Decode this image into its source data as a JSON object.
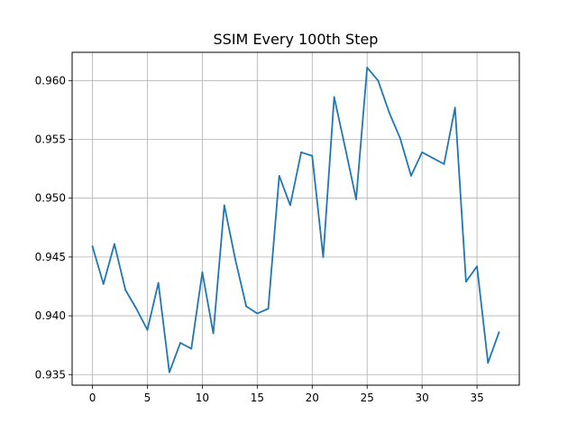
{
  "chart_data": {
    "type": "line",
    "title": "SSIM Every 100th Step",
    "xlabel": "",
    "ylabel": "",
    "xlim": [
      -1.85,
      38.85
    ],
    "ylim": [
      0.9341,
      0.9624
    ],
    "xticks": [
      0,
      5,
      10,
      15,
      20,
      25,
      30,
      35
    ],
    "xtick_labels": [
      "0",
      "5",
      "10",
      "15",
      "20",
      "25",
      "30",
      "35"
    ],
    "yticks": [
      0.935,
      0.94,
      0.945,
      0.95,
      0.955,
      0.96
    ],
    "ytick_labels": [
      "0.935",
      "0.940",
      "0.945",
      "0.950",
      "0.955",
      "0.960"
    ],
    "grid": true,
    "series": [
      {
        "color": "#1f77b4",
        "x": [
          0,
          1,
          2,
          3,
          4,
          5,
          6,
          7,
          8,
          9,
          10,
          11,
          12,
          13,
          14,
          15,
          16,
          17,
          18,
          19,
          20,
          21,
          22,
          23,
          24,
          25,
          26,
          27,
          28,
          29,
          30,
          31,
          32,
          33,
          34,
          35,
          36,
          37
        ],
        "y": [
          0.9459,
          0.9427,
          0.9461,
          0.9422,
          0.9406,
          0.9388,
          0.9428,
          0.9352,
          0.9377,
          0.9372,
          0.9437,
          0.9385,
          0.9494,
          0.9448,
          0.9408,
          0.9402,
          0.9406,
          0.9519,
          0.9494,
          0.9539,
          0.9536,
          0.945,
          0.9586,
          0.9543,
          0.9499,
          0.9611,
          0.96,
          0.9573,
          0.9551,
          0.9519,
          0.9539,
          0.9534,
          0.9529,
          0.9577,
          0.9429,
          0.9442,
          0.936,
          0.9386
        ]
      }
    ]
  }
}
